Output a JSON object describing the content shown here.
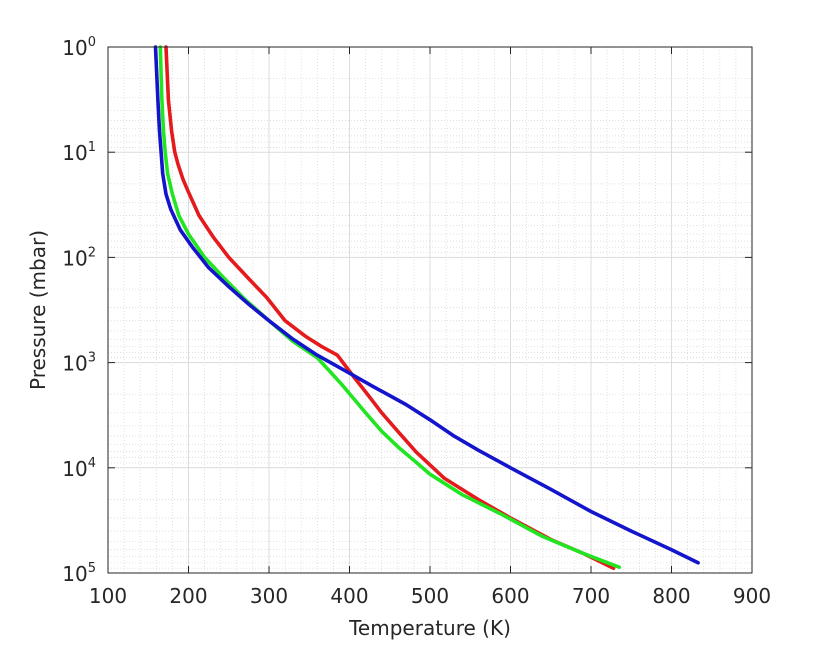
{
  "chart_data": {
    "type": "line",
    "title": "",
    "xlabel": "Temperature (K)",
    "ylabel": "Pressure (mbar)",
    "xlim": [
      100,
      900
    ],
    "ylim": [
      1,
      100000
    ],
    "yscale": "log",
    "yreversed": true,
    "grid": true,
    "minor_grid": true,
    "legend": "none",
    "xticks": [
      100,
      200,
      300,
      400,
      500,
      600,
      700,
      800,
      900
    ],
    "xtick_labels": [
      "100",
      "200",
      "300",
      "400",
      "500",
      "600",
      "700",
      "800",
      "900"
    ],
    "yticks": [
      1,
      10,
      100,
      1000,
      10000,
      100000
    ],
    "ytick_labels": [
      {
        "base": "10",
        "exp": "0"
      },
      {
        "base": "10",
        "exp": "1"
      },
      {
        "base": "10",
        "exp": "2"
      },
      {
        "base": "10",
        "exp": "3"
      },
      {
        "base": "10",
        "exp": "4"
      },
      {
        "base": "10",
        "exp": "5"
      }
    ],
    "series": [
      {
        "color": "#e41a1c",
        "points": [
          [
            172,
            1
          ],
          [
            175,
            3.2
          ],
          [
            179,
            6.3
          ],
          [
            183,
            10
          ],
          [
            187,
            13
          ],
          [
            193,
            18
          ],
          [
            200,
            24
          ],
          [
            213,
            40
          ],
          [
            230,
            63
          ],
          [
            250,
            100
          ],
          [
            275,
            160
          ],
          [
            297,
            240
          ],
          [
            320,
            400
          ],
          [
            345,
            560
          ],
          [
            365,
            700
          ],
          [
            385,
            850
          ],
          [
            396,
            1100
          ],
          [
            408,
            1450
          ],
          [
            420,
            1900
          ],
          [
            440,
            3000
          ],
          [
            460,
            4500
          ],
          [
            483,
            7100
          ],
          [
            518,
            12600
          ],
          [
            560,
            20000
          ],
          [
            600,
            30000
          ],
          [
            650,
            48000
          ],
          [
            690,
            65000
          ],
          [
            728,
            90000
          ]
        ]
      },
      {
        "color": "#22e522",
        "points": [
          [
            165,
            1
          ],
          [
            167,
            3.2
          ],
          [
            169,
            6.3
          ],
          [
            171,
            10
          ],
          [
            174,
            16
          ],
          [
            180,
            25
          ],
          [
            188,
            40
          ],
          [
            200,
            60
          ],
          [
            220,
            100
          ],
          [
            245,
            160
          ],
          [
            270,
            250
          ],
          [
            300,
            400
          ],
          [
            330,
            630
          ],
          [
            360,
            900
          ],
          [
            375,
            1200
          ],
          [
            390,
            1600
          ],
          [
            403,
            2100
          ],
          [
            420,
            3000
          ],
          [
            440,
            4500
          ],
          [
            460,
            6300
          ],
          [
            480,
            8500
          ],
          [
            500,
            11500
          ],
          [
            540,
            18000
          ],
          [
            590,
            28000
          ],
          [
            640,
            45000
          ],
          [
            690,
            65000
          ],
          [
            735,
            88000
          ]
        ]
      },
      {
        "color": "#1414cc",
        "points": [
          [
            159,
            1
          ],
          [
            162,
            3.2
          ],
          [
            164,
            6.3
          ],
          [
            166,
            10
          ],
          [
            168,
            16
          ],
          [
            172,
            25
          ],
          [
            178,
            35
          ],
          [
            190,
            55
          ],
          [
            205,
            80
          ],
          [
            225,
            125
          ],
          [
            250,
            190
          ],
          [
            275,
            280
          ],
          [
            300,
            400
          ],
          [
            330,
            600
          ],
          [
            360,
            850
          ],
          [
            395,
            1200
          ],
          [
            430,
            1700
          ],
          [
            470,
            2500
          ],
          [
            500,
            3500
          ],
          [
            530,
            5000
          ],
          [
            560,
            6800
          ],
          [
            600,
            10000
          ],
          [
            650,
            16000
          ],
          [
            700,
            26000
          ],
          [
            750,
            40000
          ],
          [
            800,
            60000
          ],
          [
            833,
            80000
          ]
        ]
      }
    ]
  }
}
